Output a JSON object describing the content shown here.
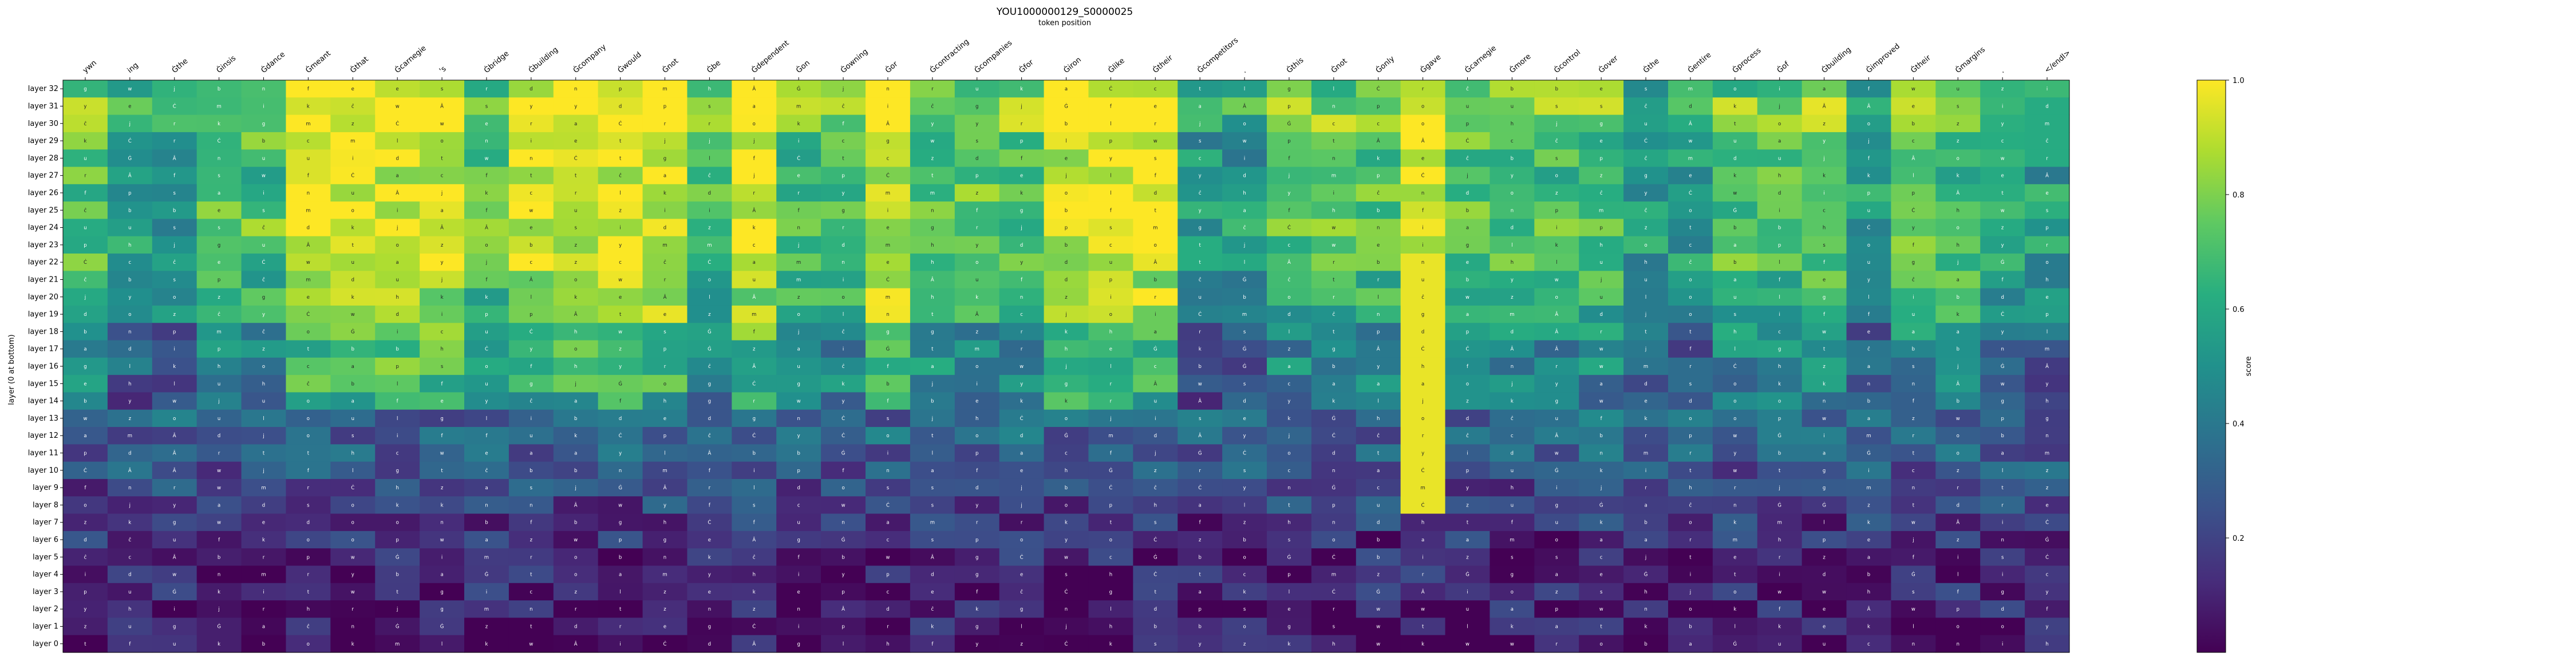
{
  "chart_data": {
    "type": "heatmap",
    "title": "YOU1000000129_S0000025",
    "xlabel": "token position",
    "ylabel": "layer (0 at bottom)",
    "colorbar_label": "score",
    "colormap": "viridis",
    "vmin": 0.0,
    "vmax": 1.0,
    "colorbar_ticks": [
      "0.2",
      "0.4",
      "0.6",
      "0.8",
      "1.0"
    ],
    "x_tokens": [
      "ywn",
      "ing",
      "Ġthe",
      "Ġinsis",
      "Ġdance",
      "Ġmeant",
      "Ġthat",
      "Ġcarnegie",
      "'s",
      "Ġbridge",
      "Ġbuilding",
      "Ġcompany",
      "Ġwould",
      "Ġnot",
      "Ġbe",
      "Ġdependent",
      "Ġon",
      "Ġowning",
      "Ġor",
      "Ġcontracting",
      "Ġcompanies",
      "Ġfor",
      "Ġiron",
      "Ġlike",
      "Ġtheir",
      "Ġcompetitors",
      ".",
      "Ġthis",
      "Ġnot",
      "Ġonly",
      "Ġgave",
      "Ġcarnegie",
      "Ġmore",
      "Ġcontrol",
      "Ġover",
      "Ġthe",
      "Ġentire",
      "Ġprocess",
      "Ġof",
      "Ġbuilding",
      "Ġimproved",
      "Ġtheir",
      "Ġmargins",
      ".",
      "</endl>"
    ],
    "y_layers": [
      "layer 32",
      "layer 31",
      "layer 30",
      "layer 29",
      "layer 28",
      "layer 27",
      "layer 26",
      "layer 25",
      "layer 24",
      "layer 23",
      "layer 22",
      "layer 21",
      "layer 20",
      "layer 19",
      "layer 18",
      "layer 17",
      "layer 16",
      "layer 15",
      "layer 14",
      "layer 13",
      "layer 12",
      "layer 11",
      "layer 10",
      "layer 9",
      "layer 8",
      "layer 7",
      "layer 6",
      "layer 5",
      "layer 4",
      "layer 3",
      "layer 2",
      "layer 1",
      "layer 0"
    ],
    "cell_glyphs": [
      "Ġ",
      "a",
      "e",
      "i",
      "o",
      "u",
      "t",
      "s",
      "d",
      "m",
      "n",
      "c",
      "k",
      "l",
      "r",
      "p",
      "w",
      "y",
      "z",
      "j",
      "b",
      "f",
      "g",
      "h",
      "Ċ",
      "Â",
      "ĉ"
    ],
    "layer_mean_score": [
      0.75,
      0.82,
      0.8,
      0.72,
      0.7,
      0.7,
      0.73,
      0.75,
      0.74,
      0.72,
      0.72,
      0.66,
      0.64,
      0.62,
      0.5,
      0.46,
      0.48,
      0.45,
      0.38,
      0.33,
      0.32,
      0.3,
      0.26,
      0.22,
      0.2,
      0.16,
      0.13,
      0.11,
      0.1,
      0.1,
      0.09,
      0.07,
      0.05
    ],
    "high_score_columns": [
      5,
      6,
      7,
      8,
      10,
      11,
      12,
      13,
      15,
      18,
      22,
      23,
      24,
      30
    ],
    "low_score_columns": [
      1,
      2,
      25,
      26,
      35,
      36,
      40,
      43,
      44
    ],
    "vertical_high_column": 30
  }
}
